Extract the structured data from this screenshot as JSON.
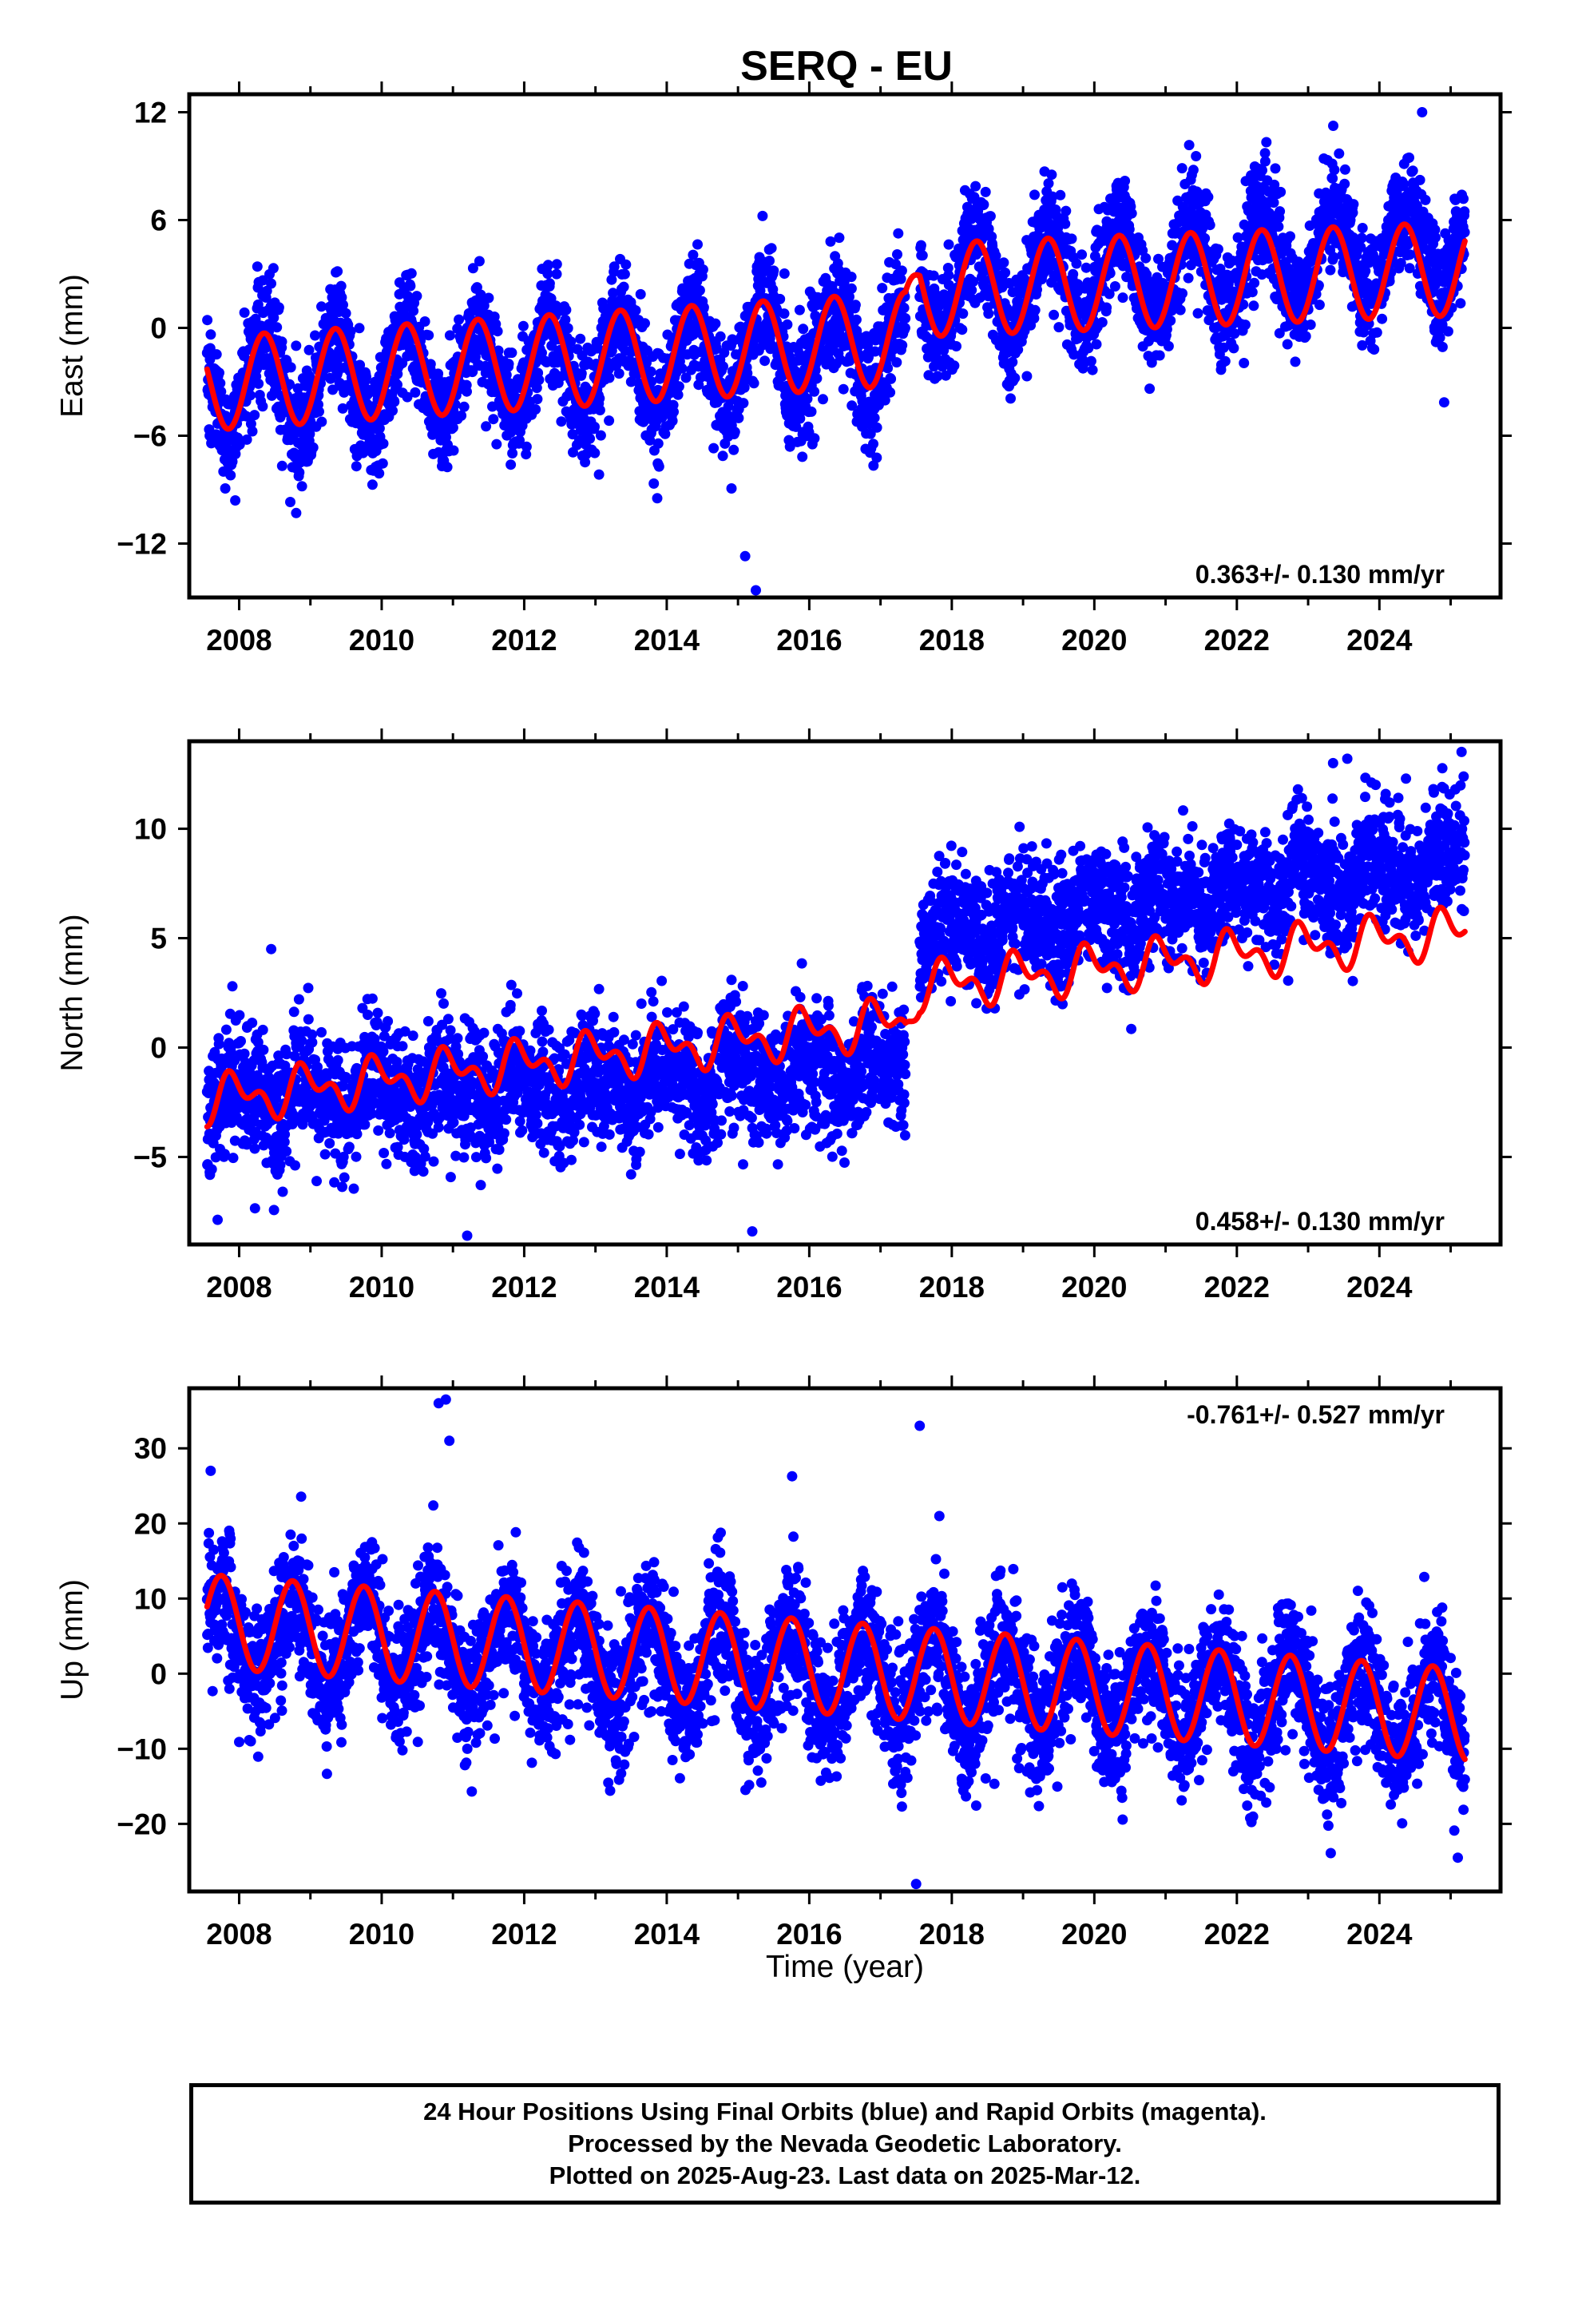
{
  "title": "SERQ - EU",
  "colors": {
    "observations": "#0000ff",
    "model": "#ff0000",
    "frame": "#000000"
  },
  "x_axis": {
    "title": "Time (year)",
    "range": [
      2007.3,
      2025.7
    ],
    "tick_labels": [
      "2008",
      "2010",
      "2012",
      "2014",
      "2016",
      "2018",
      "2020",
      "2022",
      "2024"
    ]
  },
  "footer": {
    "lines": [
      "24 Hour Positions Using Final Orbits (blue) and Rapid Orbits (magenta).",
      "Processed by the Nevada Geodetic Laboratory.",
      "Plotted on 2025-Aug-23. Last data on 2025-Mar-12."
    ]
  },
  "chart_data": [
    {
      "type": "scatter",
      "component": "east",
      "ylabel": "East (mm)",
      "ylim": [
        -15,
        13
      ],
      "yticks": [
        -12,
        -6,
        0,
        6,
        12
      ],
      "ytick_labels": [
        "−12",
        "−6",
        "0",
        "6",
        "12"
      ],
      "rate_text": "0.363+/- 0.130 mm/yr",
      "rate_position": "bottom-right",
      "model": {
        "linear": [
          [
            2007.55,
            -3.1
          ],
          [
            2017.35,
            -0.6
          ],
          [
            2017.55,
            2.1
          ],
          [
            2025.2,
            3.3
          ]
        ],
        "annual_amplitude": 2.6,
        "annual_phase": -0.1,
        "semiannual_amplitude": 0,
        "semiannual_phase": 0
      },
      "observations": {
        "segments": [
          [
            2007.55,
            2017.35,
            -3.3,
            -0.9
          ],
          [
            2017.55,
            2025.2,
            2.0,
            4.6
          ]
        ],
        "annual_amplitude": 2.6,
        "annual_phase": -0.1,
        "semiannual_amplitude": 0,
        "semiannual_phase": 0,
        "scatter_sd": 1.6
      },
      "outliers": [
        [
          2015.1,
          -12.7
        ],
        [
          2015.25,
          -14.6
        ],
        [
          2008.8,
          -10.3
        ],
        [
          2024.6,
          12.0
        ]
      ]
    },
    {
      "type": "scatter",
      "component": "north",
      "ylabel": "North (mm)",
      "ylim": [
        -9,
        14
      ],
      "yticks": [
        -5,
        0,
        5,
        10
      ],
      "ytick_labels": [
        "−5",
        "0",
        "5",
        "10"
      ],
      "rate_text": "0.458+/- 0.130 mm/yr",
      "rate_position": "bottom-right",
      "model": {
        "linear": [
          [
            2007.55,
            -2.4
          ],
          [
            2017.35,
            1.2
          ],
          [
            2017.55,
            2.8
          ],
          [
            2025.2,
            5.3
          ]
        ],
        "annual_amplitude": 0.8,
        "annual_phase": 0.3,
        "semiannual_amplitude": 0.6,
        "semiannual_phase": 0.8
      },
      "observations": {
        "segments": [
          [
            2007.55,
            2017.35,
            -2.4,
            -1.0
          ],
          [
            2017.55,
            2025.2,
            5.0,
            8.6
          ]
        ],
        "annual_amplitude": 0.8,
        "annual_phase": 0.3,
        "semiannual_amplitude": 0.4,
        "semiannual_phase": 0.8,
        "scatter_sd": 1.4
      },
      "outliers": [
        [
          2008.45,
          4.5
        ],
        [
          2011.2,
          -8.6
        ],
        [
          2015.2,
          -8.4
        ],
        [
          2023.55,
          13.2
        ],
        [
          2023.35,
          13.0
        ]
      ]
    },
    {
      "type": "scatter",
      "component": "up",
      "ylabel": "Up (mm)",
      "ylim": [
        -29,
        38
      ],
      "yticks": [
        -20,
        -10,
        0,
        10,
        20,
        30
      ],
      "ytick_labels": [
        "−20",
        "−10",
        "0",
        "10",
        "20",
        "30"
      ],
      "rate_text": "-0.761+/- 0.527 mm/yr",
      "rate_position": "top-right",
      "model": {
        "linear": [
          [
            2007.55,
            7.0
          ],
          [
            2025.2,
            -5.5
          ]
        ],
        "annual_amplitude": 6.2,
        "annual_phase": 0.5,
        "semiannual_amplitude": 0,
        "semiannual_phase": 0
      },
      "observations": {
        "segments": [
          [
            2007.55,
            2025.2,
            5.5,
            -5.5
          ]
        ],
        "annual_amplitude": 6.0,
        "annual_phase": 0.5,
        "semiannual_amplitude": 0,
        "semiannual_phase": 0,
        "scatter_sd": 4.5
      },
      "outliers": [
        [
          2010.9,
          36.5
        ],
        [
          2010.8,
          36.0
        ],
        [
          2010.95,
          31.0
        ],
        [
          2017.55,
          33.0
        ],
        [
          2007.6,
          27.0
        ],
        [
          2017.5,
          -28.0
        ],
        [
          2025.1,
          -24.5
        ]
      ]
    }
  ]
}
